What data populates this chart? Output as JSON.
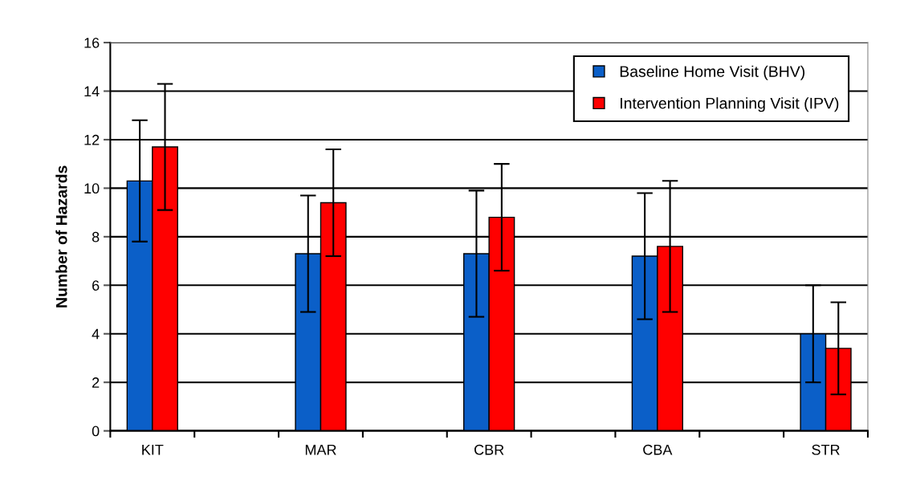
{
  "chart_data": {
    "type": "bar",
    "ylabel": "Number of Hazards",
    "categories": [
      "KIT",
      null,
      "MAR",
      null,
      "CBR",
      null,
      "CBA",
      null,
      "STR"
    ],
    "series": [
      {
        "name": "Baseline Home Visit (BHV)",
        "color": "#0b5fc8",
        "values": [
          10.3,
          null,
          7.3,
          null,
          7.3,
          null,
          7.2,
          null,
          4.0
        ],
        "errors": [
          2.5,
          null,
          2.4,
          null,
          2.6,
          null,
          2.6,
          null,
          2.0
        ]
      },
      {
        "name": "Intervention Planning Visit (IPV)",
        "color": "#ff0000",
        "values": [
          11.7,
          null,
          9.4,
          null,
          8.8,
          null,
          7.6,
          null,
          3.4
        ],
        "errors": [
          2.6,
          null,
          2.2,
          null,
          2.2,
          null,
          2.7,
          null,
          1.9
        ]
      }
    ],
    "ylim": [
      0,
      16
    ],
    "yticks": [
      0,
      2,
      4,
      6,
      8,
      10,
      12,
      14,
      16
    ],
    "grid": "y",
    "legend": "top right"
  }
}
